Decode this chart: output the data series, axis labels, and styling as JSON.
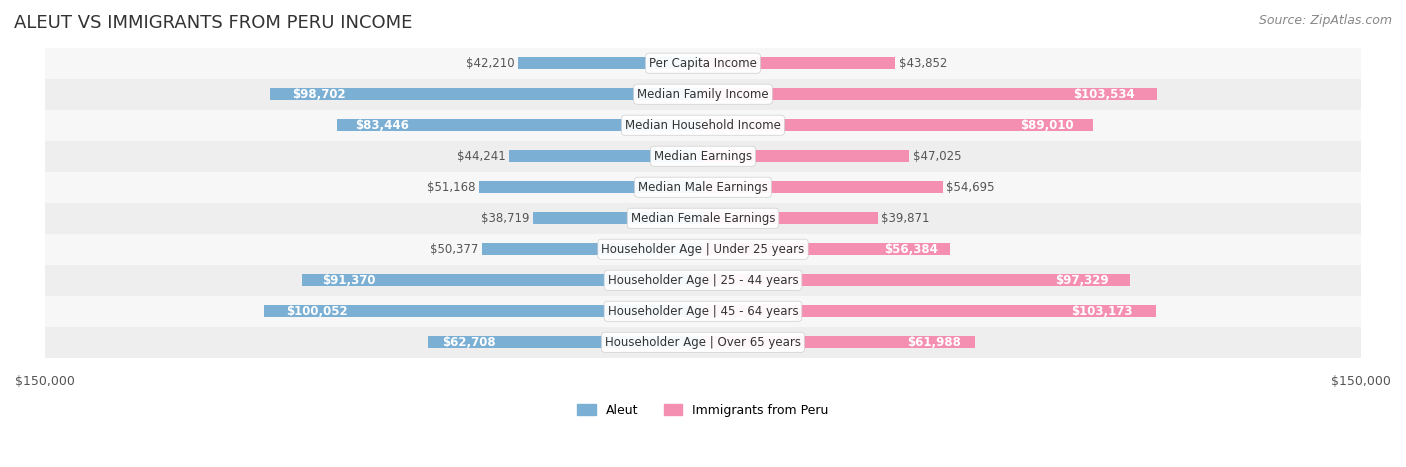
{
  "title": "ALEUT VS IMMIGRANTS FROM PERU INCOME",
  "source": "Source: ZipAtlas.com",
  "categories": [
    "Per Capita Income",
    "Median Family Income",
    "Median Household Income",
    "Median Earnings",
    "Median Male Earnings",
    "Median Female Earnings",
    "Householder Age | Under 25 years",
    "Householder Age | 25 - 44 years",
    "Householder Age | 45 - 64 years",
    "Householder Age | Over 65 years"
  ],
  "aleut_values": [
    42210,
    98702,
    83446,
    44241,
    51168,
    38719,
    50377,
    91370,
    100052,
    62708
  ],
  "peru_values": [
    43852,
    103534,
    89010,
    47025,
    54695,
    39871,
    56384,
    97329,
    103173,
    61988
  ],
  "aleut_labels": [
    "$42,210",
    "$98,702",
    "$83,446",
    "$44,241",
    "$51,168",
    "$38,719",
    "$50,377",
    "$91,370",
    "$100,052",
    "$62,708"
  ],
  "peru_labels": [
    "$43,852",
    "$103,534",
    "$89,010",
    "$47,025",
    "$54,695",
    "$39,871",
    "$56,384",
    "$97,329",
    "$103,173",
    "$61,988"
  ],
  "aleut_color": "#7bafd4",
  "peru_color": "#f48fb1",
  "aleut_color_strong": "#5b9ec9",
  "peru_color_strong": "#f06292",
  "label_bg": "#f0f0f0",
  "bg_color": "#ffffff",
  "row_bg_light": "#f7f7f7",
  "row_bg_dark": "#eeeeee",
  "max_value": 150000,
  "xlabel_left": "$150,000",
  "xlabel_right": "$150,000",
  "legend_aleut": "Aleut",
  "legend_peru": "Immigrants from Peru",
  "title_fontsize": 13,
  "source_fontsize": 9,
  "bar_label_fontsize": 8.5,
  "category_fontsize": 8.5,
  "axis_fontsize": 9
}
